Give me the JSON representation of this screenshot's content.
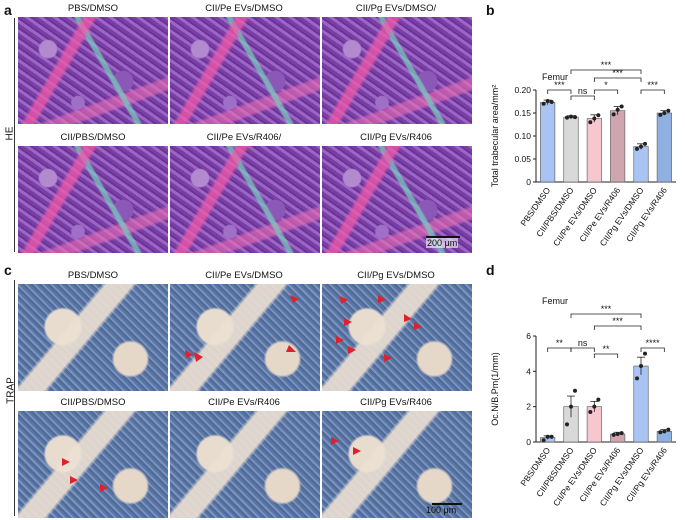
{
  "panel_labels": {
    "a": "a",
    "b": "b",
    "c": "c",
    "d": "d"
  },
  "row_labels": {
    "he": "HE",
    "trap": "TRAP"
  },
  "he_titles": [
    "PBS/DMSO",
    "CII/Pe EVs/DMSO",
    "CII/Pg EVs/DMSO/",
    "CII/PBS/DMSO",
    "CII/Pe EVs/R406/",
    "CII/Pg EVs/R406"
  ],
  "trap_titles": [
    "PBS/DMSO",
    "CII/Pe EVs/DMSO",
    "CII/Pg EVs/DMSO",
    "CII/PBS/DMSO",
    "CII/Pe EVs/R406",
    "CII/Pg EVs/R406"
  ],
  "scalebars": {
    "he": "200 μm",
    "trap": "100 μm"
  },
  "chart_data": [
    {
      "type": "bar",
      "title": "Femur",
      "ylabel": "Total trabecular area/mm²",
      "ylim": [
        0,
        0.2
      ],
      "yticks": [
        "0",
        "0.05",
        "0.10",
        "0.15",
        "0.20"
      ],
      "categories": [
        "PBS/DMSO",
        "CII/PBS/DMSO",
        "CII/Pe EVs/DMSO",
        "CII/Pe EVs/R406",
        "CII/Pg EVs/DMSO",
        "CII/Pg EVs/R406"
      ],
      "values": [
        0.173,
        0.141,
        0.138,
        0.155,
        0.077,
        0.15
      ],
      "errors": [
        0.005,
        0.003,
        0.008,
        0.009,
        0.006,
        0.005
      ],
      "points": [
        [
          0.17,
          0.176,
          0.174
        ],
        [
          0.14,
          0.142,
          0.141
        ],
        [
          0.13,
          0.138,
          0.145
        ],
        [
          0.147,
          0.157,
          0.164
        ],
        [
          0.072,
          0.077,
          0.083
        ],
        [
          0.146,
          0.15,
          0.155
        ]
      ],
      "colors": [
        "#a9c4f2",
        "#d9d9d9",
        "#f7c6cf",
        "#cfa6b0",
        "#a9c4f2",
        "#8fb0e0"
      ],
      "significance": [
        {
          "a": 0,
          "b": 1,
          "label": "***"
        },
        {
          "a": 1,
          "b": 2,
          "label": "ns"
        },
        {
          "a": 2,
          "b": 3,
          "label": "*"
        },
        {
          "a": 1,
          "b": 4,
          "label": "***"
        },
        {
          "a": 4,
          "b": 5,
          "label": "***"
        },
        {
          "a": 2,
          "b": 4,
          "label": "***"
        }
      ]
    },
    {
      "type": "bar",
      "title": "Femur",
      "ylabel": "Oc.N/B.Pm(1/mm)",
      "ylim": [
        0,
        6
      ],
      "yticks": [
        "0",
        "2",
        "4",
        "6"
      ],
      "categories": [
        "PBS/DMSO",
        "CII/PBS/DMSO",
        "CII/Pe EVs/DMSO",
        "CII/Pe EVs/R406",
        "CII/Pg EVs/DMSO",
        "CII/Pg EVs/R406"
      ],
      "values": [
        0.25,
        2.0,
        2.0,
        0.45,
        4.3,
        0.6
      ],
      "errors": [
        0.1,
        0.6,
        0.3,
        0.1,
        0.5,
        0.1
      ],
      "points": [
        [
          0.1,
          0.3,
          0.3
        ],
        [
          1.0,
          2.0,
          2.9
        ],
        [
          1.7,
          2.0,
          2.4
        ],
        [
          0.4,
          0.45,
          0.5
        ],
        [
          3.6,
          4.3,
          5.0
        ],
        [
          0.55,
          0.6,
          0.7
        ]
      ],
      "colors": [
        "#a9c4f2",
        "#d9d9d9",
        "#f7c6cf",
        "#cfa6b0",
        "#a9c4f2",
        "#8fb0e0"
      ],
      "significance": [
        {
          "a": 1,
          "b": 2,
          "label": "ns"
        },
        {
          "a": 0,
          "b": 1,
          "label": "**"
        },
        {
          "a": 2,
          "b": 3,
          "label": "**"
        },
        {
          "a": 1,
          "b": 4,
          "label": "***"
        },
        {
          "a": 4,
          "b": 5,
          "label": "****"
        },
        {
          "a": 2,
          "b": 4,
          "label": "***"
        }
      ]
    }
  ]
}
